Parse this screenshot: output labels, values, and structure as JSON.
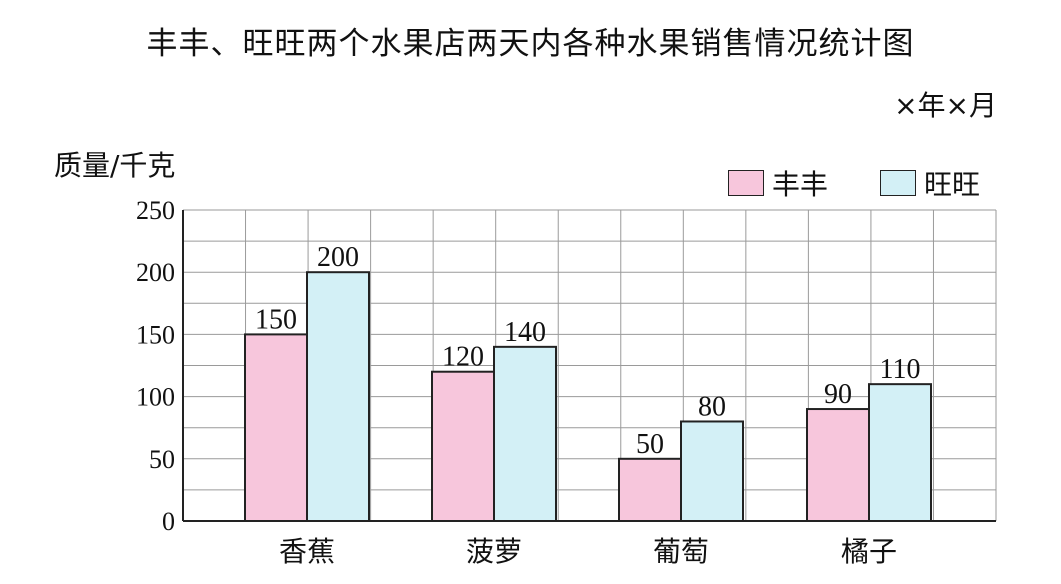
{
  "chart_data": {
    "type": "bar",
    "title": "丰丰、旺旺两个水果店两天内各种水果销售情况统计图",
    "date_note": "×年×月",
    "ylabel": "质量/千克",
    "xlabel": "",
    "categories": [
      "香蕉",
      "菠萝",
      "葡萄",
      "橘子"
    ],
    "series": [
      {
        "name": "丰丰",
        "values": [
          150,
          120,
          50,
          90
        ],
        "color": "#f7c6dc"
      },
      {
        "name": "旺旺",
        "values": [
          200,
          140,
          80,
          110
        ],
        "color": "#d3f0f6"
      }
    ],
    "ylim": [
      0,
      250
    ],
    "yticks": [
      0,
      50,
      100,
      150,
      200,
      250
    ],
    "grid": true,
    "legend_position": "top-right"
  }
}
